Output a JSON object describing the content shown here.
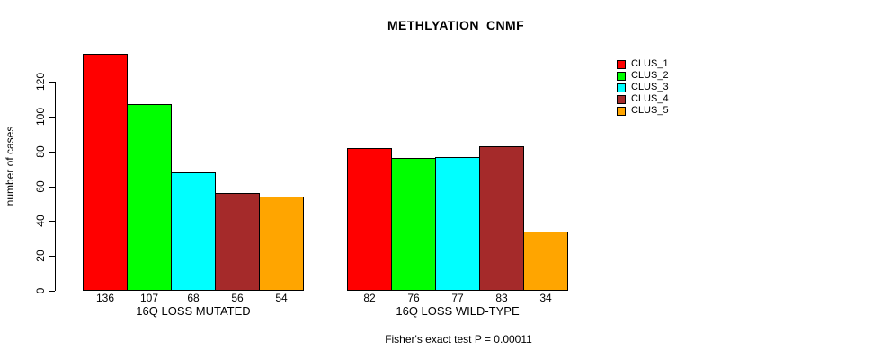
{
  "title": "METHLYATION_CNMF",
  "chart_data": {
    "type": "bar",
    "title": "METHLYATION_CNMF",
    "ylabel": "number of cases",
    "xlabel": "",
    "ylim": [
      0,
      136
    ],
    "yticks": [
      0,
      20,
      40,
      60,
      80,
      100,
      120
    ],
    "grid": false,
    "legend_position": "top-right",
    "series": [
      {
        "name": "CLUS_1",
        "color": "#FF0000"
      },
      {
        "name": "CLUS_2",
        "color": "#00FF00"
      },
      {
        "name": "CLUS_3",
        "color": "#00FFFF"
      },
      {
        "name": "CLUS_4",
        "color": "#A52A2A"
      },
      {
        "name": "CLUS_5",
        "color": "#FFA500"
      }
    ],
    "groups": [
      {
        "label": "16Q LOSS MUTATED",
        "values": [
          136,
          107,
          68,
          56,
          54
        ]
      },
      {
        "label": "16Q LOSS WILD-TYPE",
        "values": [
          82,
          76,
          77,
          83,
          34
        ]
      }
    ],
    "annotation": "Fisher's exact test P = 0.00011"
  }
}
